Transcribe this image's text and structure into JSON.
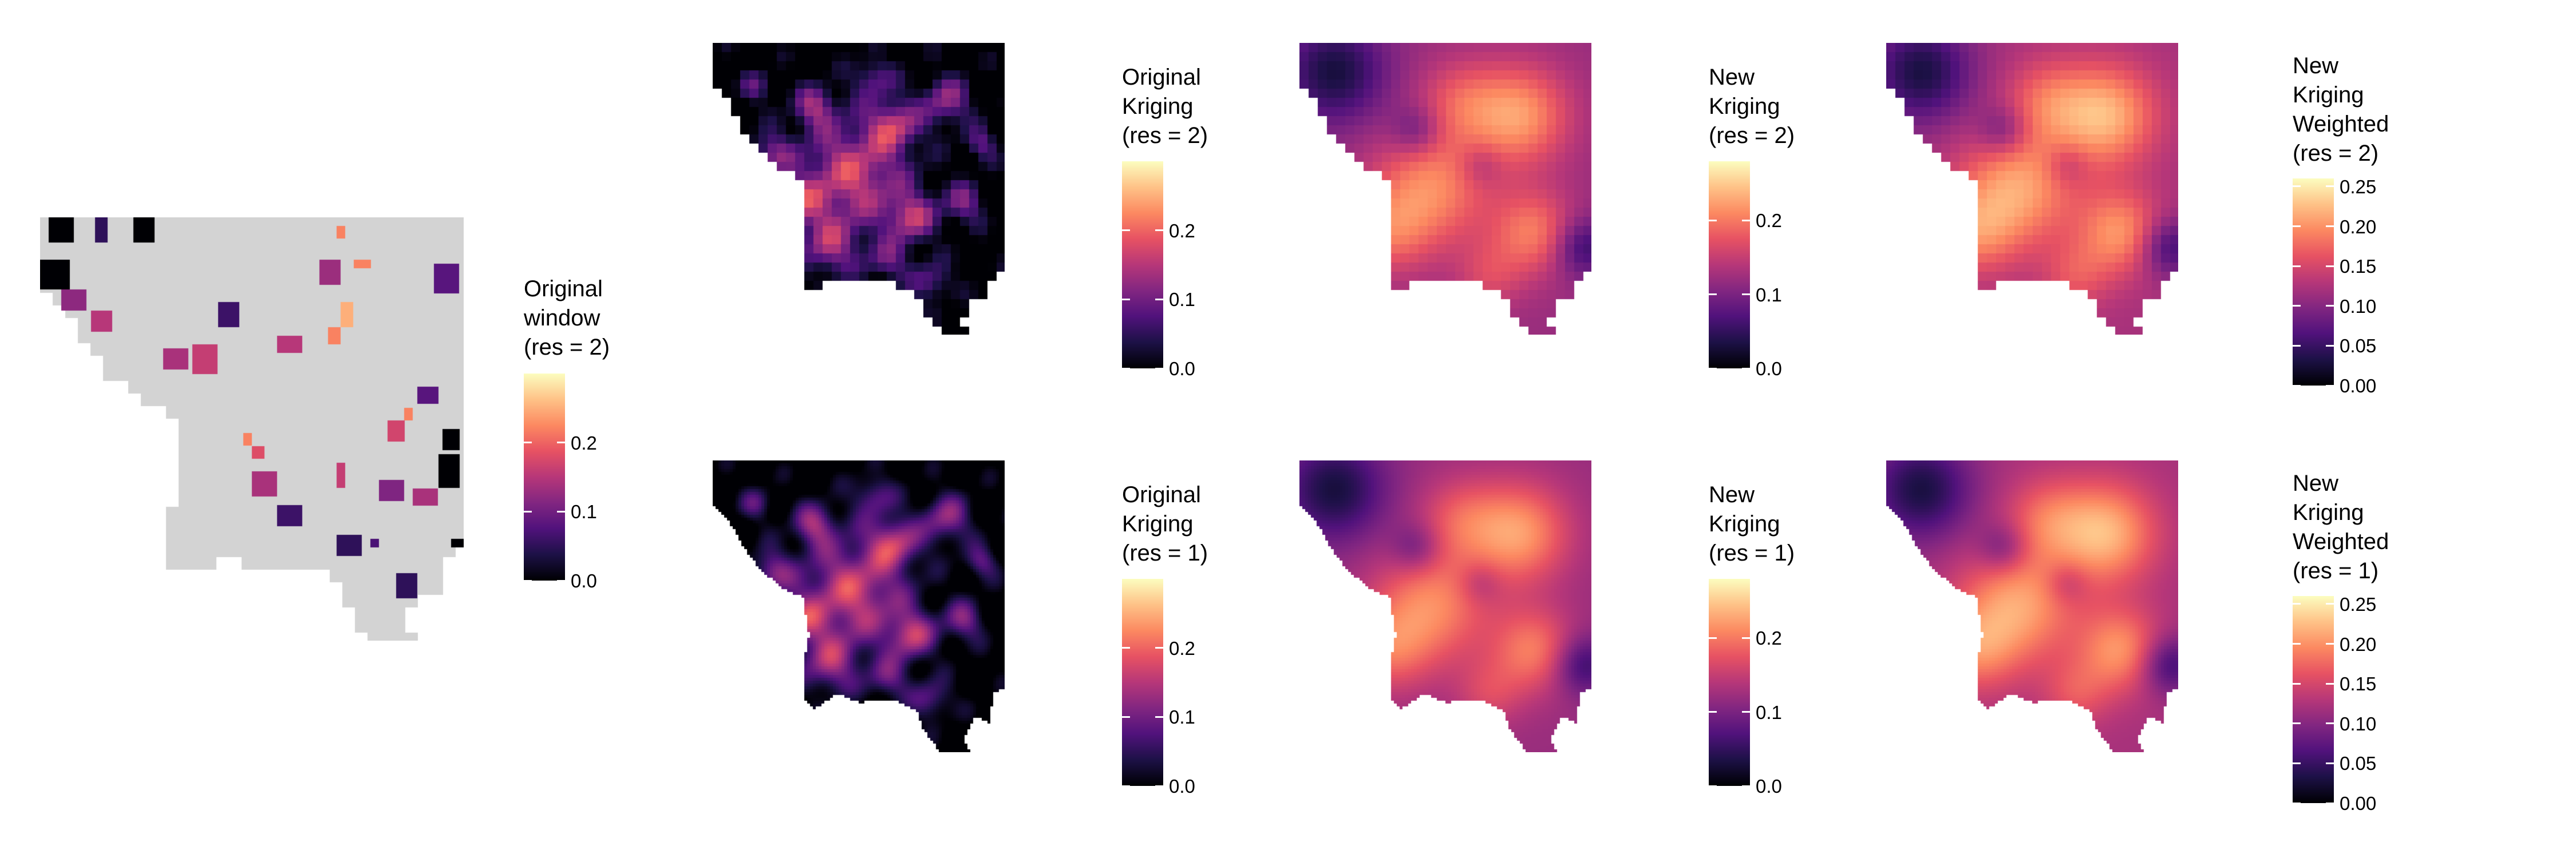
{
  "chart_data": [
    {
      "type": "heatmap",
      "id": "original-window-res2",
      "legend_title": [
        "Original",
        "window",
        "(res = 2)"
      ],
      "legend_ticks": [
        "0.0",
        "0.1",
        "0.2"
      ],
      "tick_values": [
        0.0,
        0.1,
        0.2
      ],
      "scale_range": [
        0.0,
        0.3
      ],
      "colormap": "magma",
      "background_color": "#d3d3d3",
      "description_values": "sparse observed cells on grey study window"
    },
    {
      "type": "heatmap",
      "id": "original-kriging-res2",
      "legend_title": [
        "Original",
        "Kriging",
        "(res = 2)"
      ],
      "legend_ticks": [
        "0.0",
        "0.1",
        "0.2"
      ],
      "tick_values": [
        0.0,
        0.1,
        0.2
      ],
      "scale_range": [
        0.0,
        0.3
      ],
      "colormap": "magma"
    },
    {
      "type": "heatmap",
      "id": "new-kriging-res2",
      "legend_title": [
        "New",
        "Kriging",
        "(res = 2)"
      ],
      "legend_ticks": [
        "0.0",
        "0.1",
        "0.2"
      ],
      "tick_values": [
        0.0,
        0.1,
        0.2
      ],
      "scale_range": [
        0.0,
        0.28
      ],
      "colormap": "magma"
    },
    {
      "type": "heatmap",
      "id": "new-kriging-weighted-res2",
      "legend_title": [
        "New",
        "Kriging",
        "Weighted",
        "(res = 2)"
      ],
      "legend_ticks": [
        "0.00",
        "0.05",
        "0.10",
        "0.15",
        "0.20",
        "0.25"
      ],
      "tick_values": [
        0.0,
        0.05,
        0.1,
        0.15,
        0.2,
        0.25
      ],
      "scale_range": [
        0.0,
        0.26
      ],
      "colormap": "magma"
    },
    {
      "type": "heatmap",
      "id": "original-kriging-res1",
      "legend_title": [
        "Original",
        "Kriging",
        "(res = 1)"
      ],
      "legend_ticks": [
        "0.0",
        "0.1",
        "0.2"
      ],
      "tick_values": [
        0.0,
        0.1,
        0.2
      ],
      "scale_range": [
        0.0,
        0.3
      ],
      "colormap": "magma"
    },
    {
      "type": "heatmap",
      "id": "new-kriging-res1",
      "legend_title": [
        "New",
        "Kriging",
        "(res = 1)"
      ],
      "legend_ticks": [
        "0.0",
        "0.1",
        "0.2"
      ],
      "tick_values": [
        0.0,
        0.1,
        0.2
      ],
      "scale_range": [
        0.0,
        0.28
      ],
      "colormap": "magma"
    },
    {
      "type": "heatmap",
      "id": "new-kriging-weighted-res1",
      "legend_title": [
        "New",
        "Kriging",
        "Weighted",
        "(res = 1)"
      ],
      "legend_ticks": [
        "0.00",
        "0.05",
        "0.10",
        "0.15",
        "0.20",
        "0.25"
      ],
      "tick_values": [
        0.0,
        0.05,
        0.1,
        0.15,
        0.2,
        0.25
      ],
      "scale_range": [
        0.0,
        0.26
      ],
      "colormap": "magma"
    }
  ],
  "colors": {
    "magma_stops": [
      "#000004",
      "#1d1147",
      "#51127c",
      "#822681",
      "#b73779",
      "#e75263",
      "#fc8961",
      "#fec287",
      "#fcfdbf"
    ],
    "window_grey": "#d3d3d3",
    "page_background": "#ffffff"
  }
}
